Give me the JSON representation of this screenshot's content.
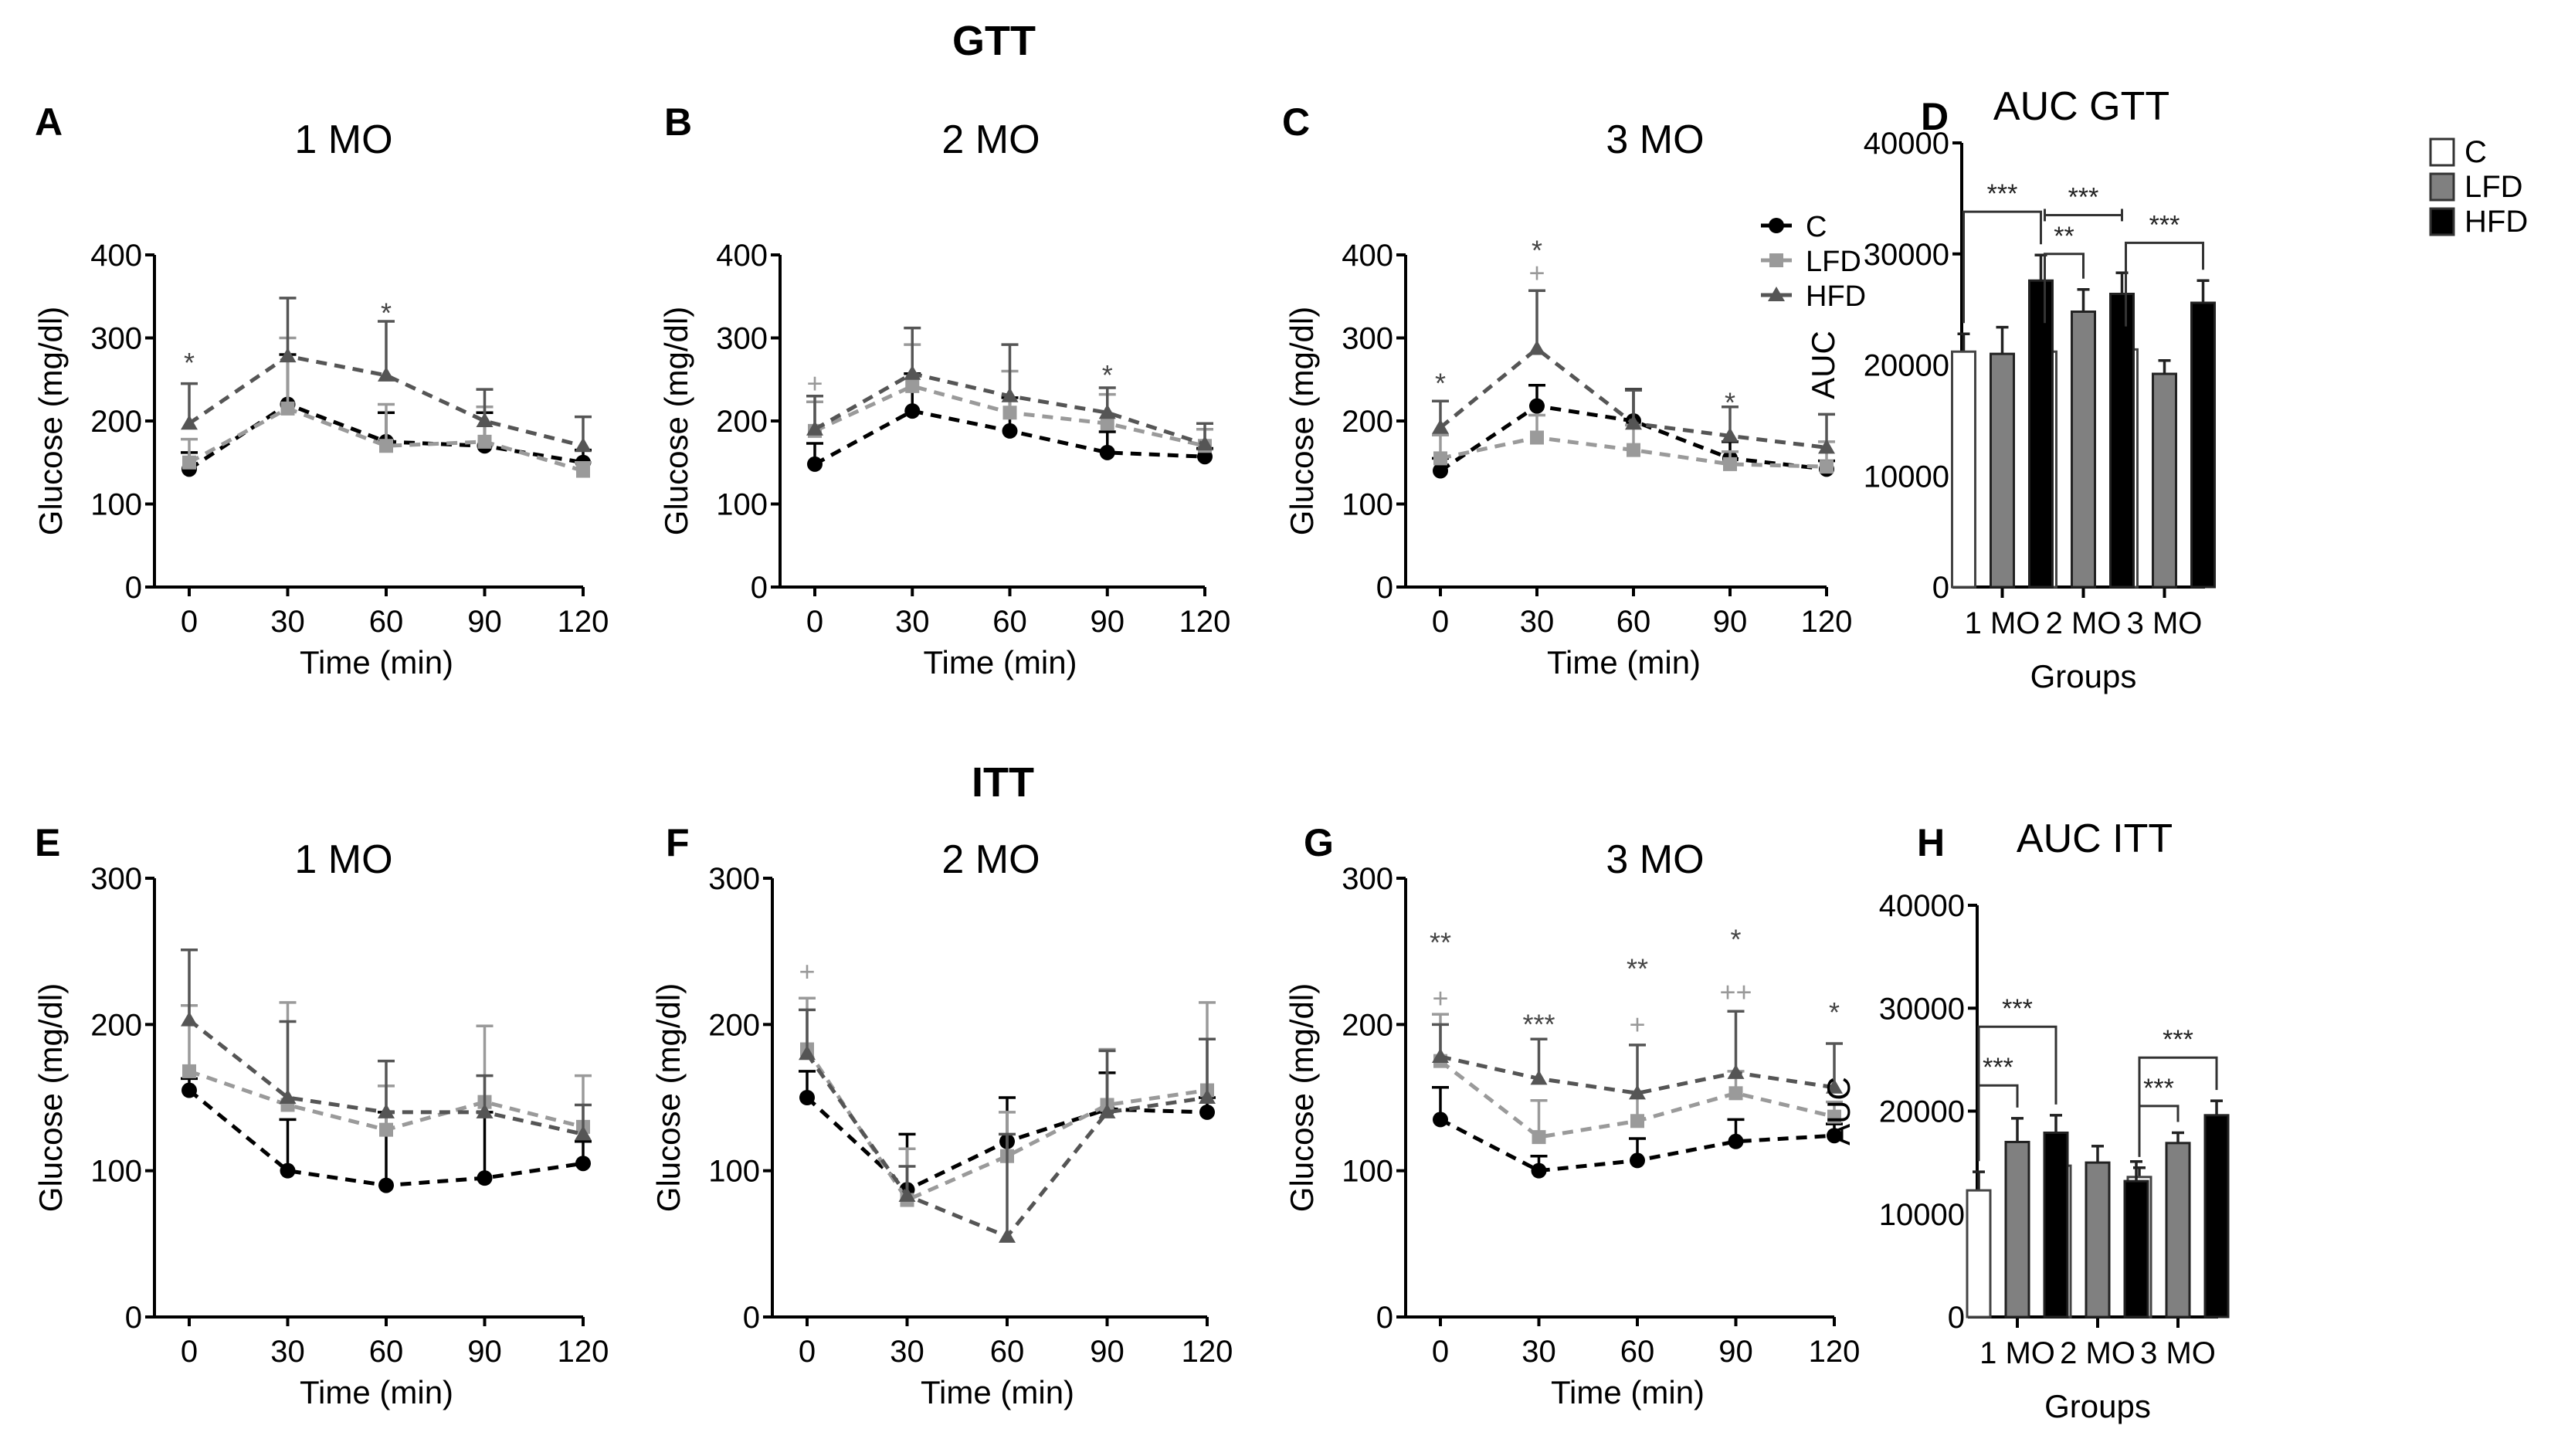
{
  "figure": {
    "section_titles": {
      "gtt": "GTT",
      "itt": "ITT"
    },
    "colors": {
      "C": "#000000",
      "LFD": "#9a9a9a",
      "HFD": "#555555",
      "bar_C": "#ffffff",
      "bar_LFD": "#808080",
      "bar_HFD": "#000000"
    },
    "legend_line": [
      {
        "name": "C",
        "marker": "circle"
      },
      {
        "name": "LFD",
        "marker": "square"
      },
      {
        "name": "HFD",
        "marker": "triangle"
      }
    ],
    "legend_bar": [
      "C",
      "LFD",
      "HFD"
    ]
  },
  "chart_data": [
    {
      "id": "A",
      "panel_label": "A",
      "type": "line",
      "title": "1 MO",
      "xlabel": "Time (min)",
      "ylabel": "Glucose (mg/dl)",
      "x": [
        0,
        30,
        60,
        90,
        120
      ],
      "xticks": [
        "0",
        "30",
        "60",
        "90",
        "120"
      ],
      "ylim": [
        0,
        400
      ],
      "yticks": [
        0,
        100,
        200,
        300,
        400
      ],
      "series": [
        {
          "name": "C",
          "values": [
            142,
            220,
            175,
            170,
            150
          ],
          "err": [
            20,
            60,
            35,
            40,
            15
          ]
        },
        {
          "name": "LFD",
          "values": [
            150,
            215,
            170,
            175,
            140
          ],
          "err": [
            28,
            85,
            50,
            42,
            10
          ]
        },
        {
          "name": "HFD",
          "values": [
            197,
            278,
            255,
            200,
            170
          ],
          "err": [
            48,
            70,
            65,
            38,
            35
          ]
        }
      ],
      "annotations": [
        {
          "x": 0,
          "text": "*",
          "y": 270
        },
        {
          "x": 60,
          "text": "*",
          "y": 330
        }
      ]
    },
    {
      "id": "B",
      "panel_label": "B",
      "type": "line",
      "title": "2 MO",
      "xlabel": "Time (min)",
      "ylabel": "Glucose (mg/dl)",
      "x": [
        0,
        30,
        60,
        90,
        120
      ],
      "xticks": [
        "0",
        "30",
        "60",
        "90",
        "120"
      ],
      "ylim": [
        0,
        400
      ],
      "yticks": [
        0,
        100,
        200,
        300,
        400
      ],
      "series": [
        {
          "name": "C",
          "values": [
            148,
            212,
            188,
            162,
            157
          ],
          "err": [
            25,
            45,
            40,
            25,
            10
          ]
        },
        {
          "name": "LFD",
          "values": [
            188,
            242,
            210,
            197,
            170
          ],
          "err": [
            35,
            50,
            50,
            35,
            20
          ]
        },
        {
          "name": "HFD",
          "values": [
            190,
            257,
            230,
            210,
            172
          ],
          "err": [
            40,
            55,
            62,
            30,
            25
          ]
        }
      ],
      "annotations": [
        {
          "x": 0,
          "text": "+",
          "y": 245
        },
        {
          "x": 90,
          "text": "*",
          "y": 255
        }
      ]
    },
    {
      "id": "C",
      "panel_label": "C",
      "type": "line",
      "title": "3 MO",
      "xlabel": "Time (min)",
      "ylabel": "Glucose (mg/dl)",
      "x": [
        0,
        30,
        60,
        90,
        120
      ],
      "xticks": [
        "0",
        "30",
        "60",
        "90",
        "120"
      ],
      "ylim": [
        0,
        400
      ],
      "yticks": [
        0,
        100,
        200,
        300,
        400
      ],
      "series": [
        {
          "name": "C",
          "values": [
            140,
            218,
            200,
            155,
            142
          ],
          "err": [
            15,
            25,
            38,
            20,
            10
          ]
        },
        {
          "name": "LFD",
          "values": [
            155,
            180,
            165,
            148,
            145
          ],
          "err": [
            28,
            27,
            30,
            15,
            30
          ]
        },
        {
          "name": "HFD",
          "values": [
            192,
            287,
            197,
            182,
            168
          ],
          "err": [
            32,
            70,
            40,
            35,
            40
          ]
        }
      ],
      "annotations": [
        {
          "x": 0,
          "text": "*",
          "y": 245
        },
        {
          "x": 30,
          "text": "*",
          "y": 405
        },
        {
          "x": 30,
          "text": "+",
          "y": 378
        },
        {
          "x": 90,
          "text": "*",
          "y": 222
        }
      ],
      "show_legend": true
    },
    {
      "id": "D",
      "panel_label": "D",
      "type": "bar",
      "title": "AUC GTT",
      "xlabel": "Groups",
      "ylabel": "AUC",
      "categories": [
        "1 MO",
        "2 MO",
        "3 MO"
      ],
      "ylim": [
        0,
        40000
      ],
      "yticks": [
        0,
        10000,
        20000,
        30000,
        40000
      ],
      "series": [
        {
          "name": "C",
          "values": [
            21200,
            21200,
            21400
          ],
          "err": [
            1600,
            1600,
            1100
          ]
        },
        {
          "name": "LFD",
          "values": [
            21000,
            24800,
            19200
          ],
          "err": [
            2400,
            2000,
            1200
          ]
        },
        {
          "name": "HFD",
          "values": [
            27600,
            26400,
            25600
          ],
          "err": [
            2300,
            1900,
            2000
          ]
        }
      ],
      "significance": [
        {
          "group": 0,
          "from": 0,
          "to": 2,
          "text": "***",
          "y": 33800
        },
        {
          "group": 1,
          "from": 0,
          "to": 1,
          "text": "**",
          "y": 30000
        },
        {
          "group": 1,
          "from": 0,
          "to": 2,
          "text": "***",
          "y": 33500,
          "style": "flat"
        },
        {
          "group": 2,
          "from": 0,
          "to": 2,
          "text": "***",
          "y": 31000
        }
      ],
      "show_legend": true
    },
    {
      "id": "E",
      "panel_label": "E",
      "type": "line",
      "title": "1 MO",
      "xlabel": "Time (min)",
      "ylabel": "Glucose (mg/dl)",
      "x": [
        0,
        30,
        60,
        90,
        120
      ],
      "xticks": [
        "0",
        "30",
        "60",
        "90",
        "120"
      ],
      "ylim": [
        0,
        300
      ],
      "yticks": [
        0,
        100,
        200,
        300
      ],
      "series": [
        {
          "name": "C",
          "values": [
            155,
            100,
            90,
            95,
            105
          ],
          "err": [
            8,
            35,
            50,
            45,
            15
          ]
        },
        {
          "name": "LFD",
          "values": [
            168,
            145,
            128,
            147,
            130
          ],
          "err": [
            45,
            70,
            30,
            52,
            35
          ]
        },
        {
          "name": "HFD",
          "values": [
            203,
            150,
            140,
            140,
            125
          ],
          "err": [
            48,
            52,
            35,
            25,
            20
          ]
        }
      ],
      "annotations": []
    },
    {
      "id": "F",
      "panel_label": "F",
      "type": "line",
      "title": "2 MO",
      "xlabel": "Time (min)",
      "ylabel": "Glucose (mg/dl)",
      "x": [
        0,
        30,
        60,
        90,
        120
      ],
      "xticks": [
        "0",
        "30",
        "60",
        "90",
        "120"
      ],
      "ylim": [
        0,
        300
      ],
      "yticks": [
        0,
        100,
        200,
        300
      ],
      "series": [
        {
          "name": "C",
          "values": [
            150,
            87,
            120,
            142,
            140
          ],
          "err": [
            18,
            38,
            30,
            25,
            10
          ]
        },
        {
          "name": "LFD",
          "values": [
            183,
            80,
            110,
            145,
            155
          ],
          "err": [
            35,
            35,
            30,
            38,
            60
          ]
        },
        {
          "name": "HFD",
          "values": [
            180,
            83,
            55,
            140,
            150
          ],
          "err": [
            30,
            20,
            70,
            42,
            40
          ]
        }
      ],
      "annotations": [
        {
          "x": 0,
          "text": "+",
          "y": 236
        }
      ]
    },
    {
      "id": "G",
      "panel_label": "G",
      "type": "line",
      "title": "3 MO",
      "xlabel": "Time (min)",
      "ylabel": "Glucose (mg/dl)",
      "x": [
        0,
        30,
        60,
        90,
        120
      ],
      "xticks": [
        "0",
        "30",
        "60",
        "90",
        "120"
      ],
      "ylim": [
        0,
        300
      ],
      "yticks": [
        0,
        100,
        200,
        300
      ],
      "series": [
        {
          "name": "C",
          "values": [
            135,
            100,
            107,
            120,
            124
          ],
          "err": [
            22,
            10,
            15,
            15,
            8
          ]
        },
        {
          "name": "LFD",
          "values": [
            175,
            123,
            134,
            153,
            137
          ],
          "err": [
            32,
            25,
            20,
            15,
            10
          ]
        },
        {
          "name": "HFD",
          "values": [
            178,
            163,
            153,
            167,
            157
          ],
          "err": [
            22,
            27,
            33,
            42,
            30
          ]
        }
      ],
      "annotations": [
        {
          "x": 0,
          "text": "**",
          "y": 256
        },
        {
          "x": 0,
          "text": "+",
          "y": 218
        },
        {
          "x": 30,
          "text": "***",
          "y": 200
        },
        {
          "x": 60,
          "text": "**",
          "y": 238
        },
        {
          "x": 60,
          "text": "+",
          "y": 200
        },
        {
          "x": 90,
          "text": "*",
          "y": 258
        },
        {
          "x": 90,
          "text": "++",
          "y": 222
        },
        {
          "x": 120,
          "text": "*",
          "y": 208
        }
      ]
    },
    {
      "id": "H",
      "panel_label": "H",
      "type": "bar",
      "title": "AUC ITT",
      "xlabel": "Groups",
      "ylabel": "AUC",
      "categories": [
        "1 MO",
        "2 MO",
        "3 MO"
      ],
      "ylim": [
        0,
        40000
      ],
      "yticks": [
        0,
        10000,
        20000,
        30000,
        40000
      ],
      "series": [
        {
          "name": "C",
          "values": [
            12300,
            14700,
            13600
          ],
          "err": [
            1800,
            1200,
            900
          ]
        },
        {
          "name": "LFD",
          "values": [
            17000,
            15000,
            16900
          ],
          "err": [
            2300,
            1600,
            1000
          ]
        },
        {
          "name": "HFD",
          "values": [
            17900,
            13200,
            19600
          ],
          "err": [
            1700,
            1900,
            1400
          ]
        }
      ],
      "significance": [
        {
          "group": 0,
          "from": 0,
          "to": 1,
          "text": "***",
          "y": 22500
        },
        {
          "group": 0,
          "from": 0,
          "to": 2,
          "text": "***",
          "y": 28200
        },
        {
          "group": 2,
          "from": 0,
          "to": 1,
          "text": "***",
          "y": 20500
        },
        {
          "group": 2,
          "from": 0,
          "to": 2,
          "text": "***",
          "y": 25200
        }
      ]
    }
  ]
}
